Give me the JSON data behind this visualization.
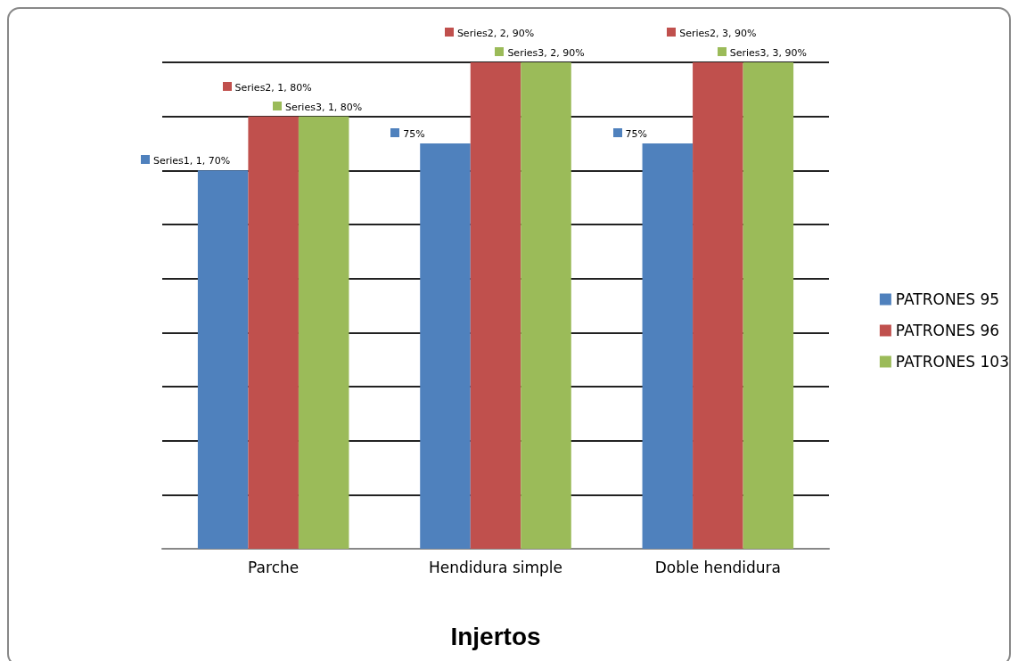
{
  "chart_data": {
    "type": "bar",
    "xlabel": "Injertos",
    "categories": [
      "Parche",
      "Hendidura simple",
      "Doble hendidura"
    ],
    "series": [
      {
        "name": "PATRONES 95",
        "color": "#4f81bd",
        "values": [
          70,
          75,
          75
        ],
        "value_labels": [
          "Series1, 1, 70%",
          "75%",
          "75%"
        ]
      },
      {
        "name": "PATRONES 96",
        "color": "#c0504d",
        "values": [
          80,
          90,
          90
        ],
        "value_labels": [
          "Series2, 1, 80%",
          "Series2, 2, 90%",
          "Series2, 3, 90%"
        ]
      },
      {
        "name": "PATRONES 103",
        "color": "#9bbb59",
        "values": [
          80,
          90,
          90
        ],
        "value_labels": [
          "Series3, 1, 80%",
          "Series3, 2, 90%",
          "Series3, 3, 90%"
        ]
      }
    ],
    "ylim": [
      0,
      90
    ],
    "yticks": [
      {
        "value": 0,
        "label": null
      },
      {
        "value": 10,
        "label": null
      },
      {
        "value": 20,
        "label": null
      },
      {
        "value": 30,
        "label": null
      },
      {
        "value": 40,
        "label": null
      },
      {
        "value": 50,
        "label": null
      },
      {
        "value": 60,
        "label": null
      },
      {
        "value": 70,
        "label": null
      },
      {
        "value": 80,
        "label": null
      },
      {
        "value": 90,
        "label": null
      }
    ],
    "grid": "y",
    "legend": "right",
    "tick_labels": "x"
  }
}
